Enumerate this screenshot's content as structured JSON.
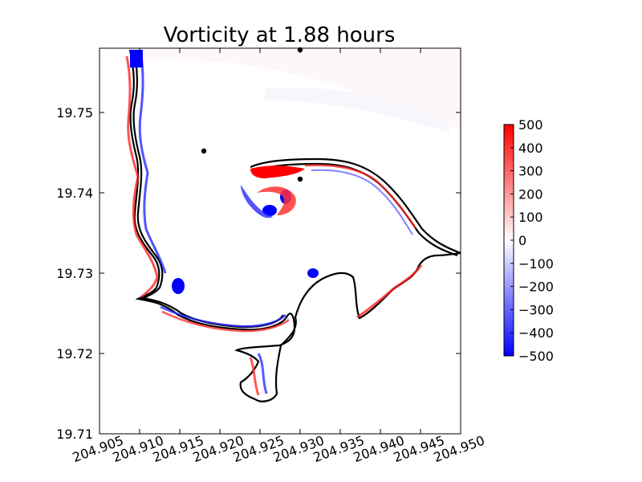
{
  "chart_data": {
    "type": "heatmap",
    "title": "Vorticity at 1.88 hours",
    "xlabel": "",
    "ylabel": "",
    "xlim": [
      204.905,
      204.95
    ],
    "ylim": [
      19.71,
      19.758
    ],
    "x_ticks": [
      "204.905",
      "204.910",
      "204.915",
      "204.920",
      "204.925",
      "204.930",
      "204.935",
      "204.940",
      "204.945",
      "204.950"
    ],
    "y_ticks": [
      "19.71",
      "19.72",
      "19.73",
      "19.74",
      "19.75"
    ],
    "colorbar": {
      "range": [
        -500,
        500
      ],
      "ticks": [
        "500",
        "400",
        "300",
        "200",
        "100",
        "0",
        "−100",
        "−200",
        "−300",
        "−400",
        "−500"
      ],
      "colors": [
        "#0000ff",
        "#ffffff",
        "#ff0000"
      ]
    },
    "points": [
      {
        "x": 204.93,
        "y": 19.7578
      },
      {
        "x": 204.918,
        "y": 19.7452
      },
      {
        "x": 204.93,
        "y": 19.7417
      }
    ],
    "grid": false
  }
}
